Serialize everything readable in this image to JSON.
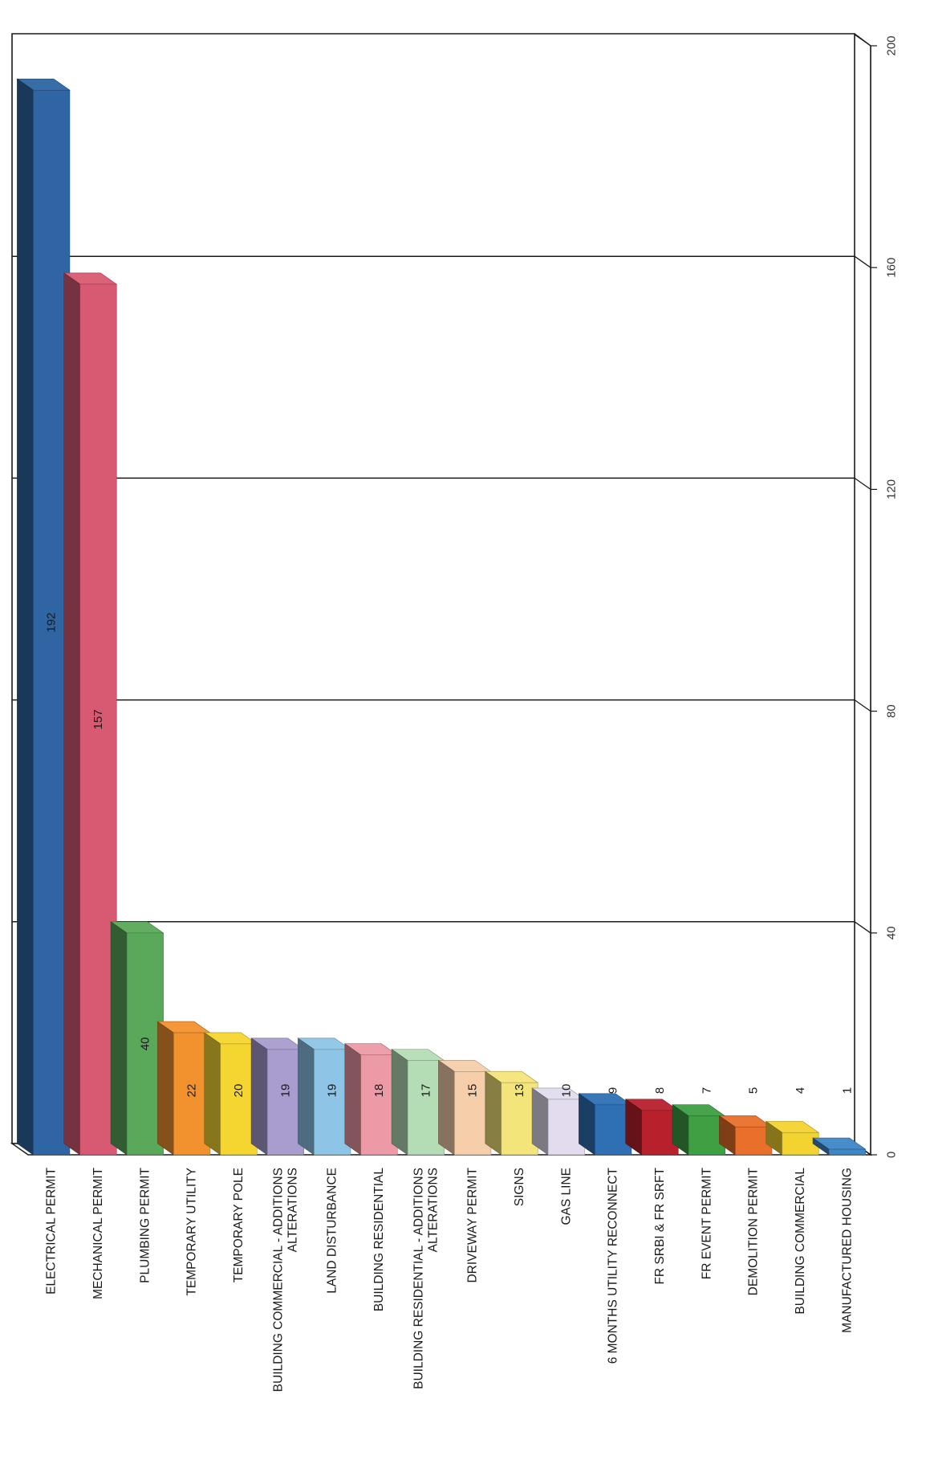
{
  "chart_data": {
    "type": "bar",
    "orientation": "horizontal-3d",
    "categories": [
      "ELECTRICAL PERMIT",
      "MECHANICAL PERMIT",
      "PLUMBING PERMIT",
      "TEMPORARY UTILITY",
      "TEMPORARY POLE",
      "BUILDING COMMERCIAL - ADDITIONS ALTERATIONS",
      "LAND DISTURBANCE",
      "BUILDING RESIDENTIAL",
      "BUILDING RESIDENTIAL - ADDITIONS ALTERATIONS",
      "DRIVEWAY PERMIT",
      "SIGNS",
      "GAS LINE",
      "6 MONTHS UTILITY RECONNECT",
      "FR SRBI & FR SRFT",
      "FR EVENT PERMIT",
      "DEMOLITION PERMIT",
      "BUILDING COMMERCIAL",
      "MANUFACTURED HOUSING"
    ],
    "values": [
      192,
      157,
      40,
      22,
      20,
      19,
      19,
      18,
      17,
      15,
      13,
      10,
      9,
      8,
      7,
      5,
      4,
      1
    ],
    "value_labels": [
      "192",
      "157",
      "40",
      "22",
      "20",
      "19",
      "19",
      "18",
      "17",
      "15",
      "13",
      "10",
      "9",
      "8",
      "7",
      "5",
      "4",
      "1"
    ],
    "colors": [
      "#2f65a3",
      "#d85a72",
      "#5aa95a",
      "#f2922e",
      "#f5d631",
      "#a99ccf",
      "#8ec5e6",
      "#ec9aa6",
      "#b5ddb5",
      "#f6cfaa",
      "#f4e57a",
      "#e2dcee",
      "#2f70b5",
      "#b8202c",
      "#3e9f43",
      "#e9702a",
      "#f3d330",
      "#3f86c7"
    ],
    "axis_ticks": [
      "0",
      "40",
      "80",
      "120",
      "160",
      "200"
    ],
    "tick_values": [
      0,
      40,
      80,
      120,
      160,
      200
    ],
    "xlim": [
      0,
      200
    ],
    "grid": true,
    "title": "",
    "xlabel": "",
    "ylabel": ""
  }
}
